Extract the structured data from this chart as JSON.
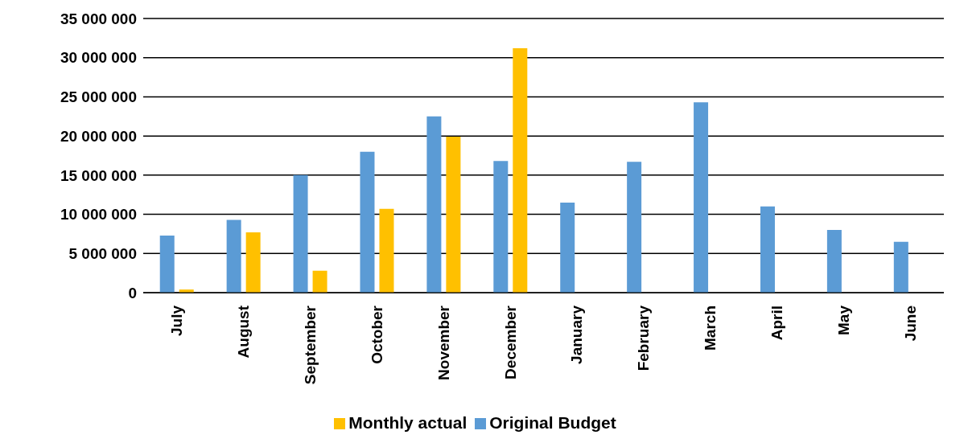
{
  "chart_data": {
    "type": "bar",
    "categories": [
      "July",
      "August",
      "September",
      "October",
      "November",
      "December",
      "January",
      "February",
      "March",
      "April",
      "May",
      "June"
    ],
    "series": [
      {
        "name": "Original Budget",
        "color": "#5b9bd5",
        "values": [
          7300000,
          9300000,
          15000000,
          18000000,
          22500000,
          16800000,
          11500000,
          16700000,
          24300000,
          11000000,
          8000000,
          6500000
        ]
      },
      {
        "name": "Monthly actual",
        "color": "#ffc000",
        "values": [
          400000,
          7700000,
          2800000,
          10700000,
          19900000,
          31200000,
          0,
          0,
          0,
          0,
          0,
          0
        ]
      }
    ],
    "ylim": [
      0,
      35000000
    ],
    "yticks": [
      {
        "value": 0,
        "label": "0"
      },
      {
        "value": 5000000,
        "label": "5 000 000"
      },
      {
        "value": 10000000,
        "label": "10 000 000"
      },
      {
        "value": 15000000,
        "label": "15 000 000"
      },
      {
        "value": 20000000,
        "label": "20 000 000"
      },
      {
        "value": 25000000,
        "label": "25 000 000"
      },
      {
        "value": 30000000,
        "label": "30 000 000"
      },
      {
        "value": 35000000,
        "label": "35 000 000"
      }
    ],
    "grid": "y",
    "legend": "bottom"
  }
}
